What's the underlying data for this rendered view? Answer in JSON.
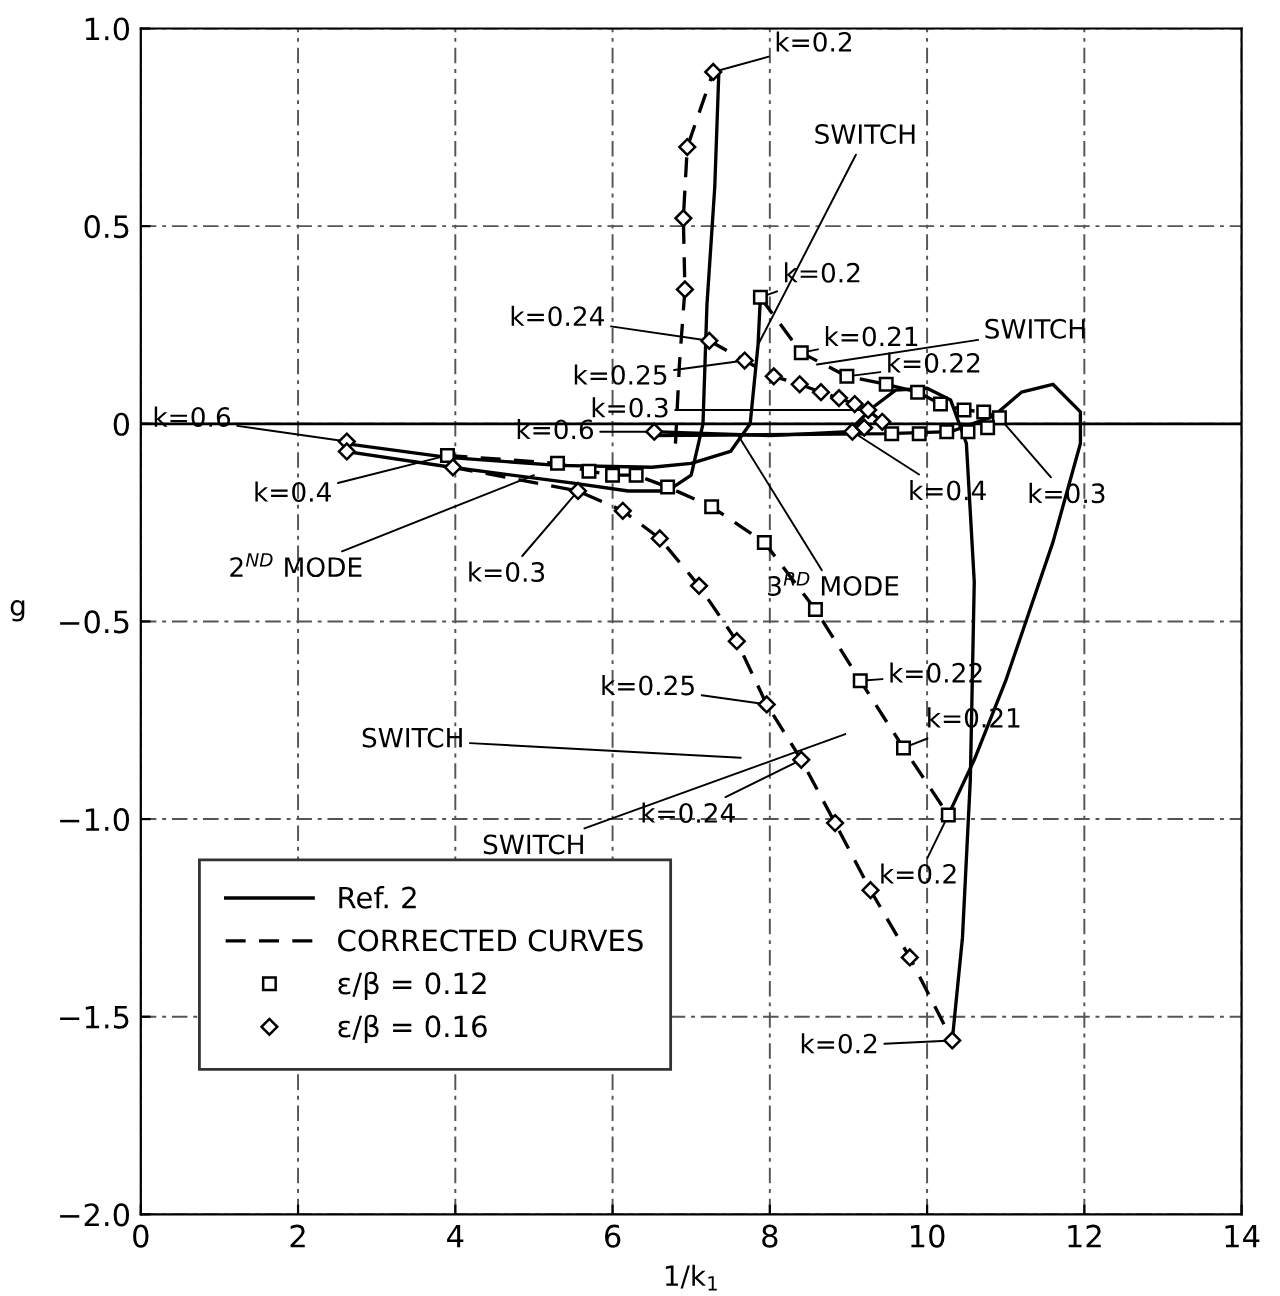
{
  "chart_data": {
    "type": "line",
    "xlabel": "1/k$_{1}$",
    "ylabel": "g",
    "xlim": [
      0,
      14
    ],
    "xticks": [
      0,
      2,
      4,
      6,
      8,
      10,
      12,
      14
    ],
    "ylim": [
      -2.0,
      1.0
    ],
    "yticks": [
      {
        "value": -2.0,
        "label": "−2.0"
      },
      {
        "value": -1.5,
        "label": "−1.5"
      },
      {
        "value": -1.0,
        "label": "−1.0"
      },
      {
        "value": -0.5,
        "label": "−0.5"
      },
      0,
      {
        "value": 0.5,
        "label": "0.5"
      },
      {
        "value": 1.0,
        "label": "1.0"
      }
    ],
    "grid": true,
    "legend": "bottom left",
    "ref_lines": [
      {
        "axis": "y",
        "value": 0,
        "color": "#000000",
        "line_style": "solid"
      }
    ],
    "series": [
      {
        "name": "Ref. 2",
        "type": "line",
        "line_style": "solid",
        "marker": "none",
        "color": "#000000",
        "x": [
          2.6,
          3.9,
          5.3,
          6.5,
          7.0,
          7.5,
          7.75,
          7.85,
          7.88
        ],
        "values": [
          -0.05,
          -0.085,
          -0.105,
          -0.11,
          -0.1,
          -0.07,
          0.0,
          0.2,
          0.32
        ]
      },
      {
        "type": "line",
        "line_style": "solid",
        "marker": "none",
        "color": "#000000",
        "x": [
          2.6,
          3.95,
          5.5,
          6.2,
          6.7,
          7.0,
          7.15,
          7.2,
          7.3,
          7.35
        ],
        "values": [
          -0.07,
          -0.11,
          -0.15,
          -0.17,
          -0.17,
          -0.13,
          0.0,
          0.3,
          0.6,
          0.88
        ]
      },
      {
        "type": "line",
        "line_style": "solid",
        "marker": "none",
        "color": "#000000",
        "x": [
          6.5,
          8.0,
          9.0,
          9.3,
          9.6,
          10.0,
          10.3,
          10.5,
          10.6,
          10.55,
          10.45,
          10.32
        ],
        "values": [
          -0.02,
          -0.03,
          -0.02,
          0.04,
          0.085,
          0.09,
          0.06,
          -0.05,
          -0.4,
          -0.9,
          -1.3,
          -1.56
        ]
      },
      {
        "type": "line",
        "line_style": "solid",
        "marker": "none",
        "color": "#000000",
        "x": [
          6.5,
          9.5,
          10.3,
          10.85,
          11.2,
          11.6,
          11.95,
          11.95,
          11.6,
          11.0,
          10.6,
          10.27
        ],
        "values": [
          -0.03,
          -0.025,
          -0.02,
          0.02,
          0.08,
          0.1,
          0.03,
          -0.05,
          -0.3,
          -0.65,
          -0.85,
          -0.99
        ]
      },
      {
        "name": "CORRECTED CURVES",
        "type": "line",
        "line_style": "dashed",
        "marker": "none",
        "color": "#000000",
        "x": [
          3.9,
          5.3,
          5.7,
          6.0,
          6.3,
          6.7,
          7.26,
          7.93,
          8.58,
          9.15,
          9.7,
          10.27
        ],
        "values": [
          -0.08,
          -0.1,
          -0.12,
          -0.13,
          -0.13,
          -0.16,
          -0.21,
          -0.3,
          -0.47,
          -0.65,
          -0.82,
          -0.99
        ]
      },
      {
        "type": "line",
        "line_style": "dashed",
        "marker": "none",
        "color": "#000000",
        "x": [
          3.97,
          5.56,
          6.13,
          6.6,
          7.1,
          7.58,
          7.96,
          8.4,
          8.83,
          9.28,
          9.78,
          10.32
        ],
        "values": [
          -0.11,
          -0.17,
          -0.22,
          -0.29,
          -0.41,
          -0.55,
          -0.71,
          -0.85,
          -1.01,
          -1.18,
          -1.35,
          -1.56
        ]
      },
      {
        "type": "line",
        "line_style": "dashed",
        "marker": "none",
        "color": "#000000",
        "x": [
          6.8,
          6.85,
          6.92,
          6.9,
          6.95,
          7.28
        ],
        "values": [
          -0.05,
          0.15,
          0.34,
          0.52,
          0.7,
          0.89
        ]
      },
      {
        "type": "line",
        "line_style": "dashed",
        "marker": "none",
        "color": "#000000",
        "x": [
          7.88,
          8.4,
          8.98,
          9.48,
          9.88,
          10.17,
          10.47,
          10.72,
          10.92
        ],
        "values": [
          0.32,
          0.18,
          0.12,
          0.1,
          0.08,
          0.05,
          0.035,
          0.03,
          0.015
        ]
      },
      {
        "type": "line",
        "line_style": "dashed",
        "marker": "none",
        "color": "#000000",
        "x": [
          7.23,
          7.68,
          8.05,
          8.38,
          8.65,
          8.88,
          9.08,
          9.25,
          9.43
        ],
        "values": [
          0.21,
          0.16,
          0.12,
          0.1,
          0.08,
          0.065,
          0.05,
          0.035,
          0.005
        ]
      },
      {
        "name": "ε/β = 0.12",
        "type": "scatter",
        "marker": "square",
        "color": "#000000",
        "x": [
          3.9,
          5.3,
          5.7,
          6.0,
          6.3,
          6.7,
          7.26,
          7.93,
          8.58,
          9.15,
          9.7,
          10.27,
          7.88,
          8.4,
          8.98,
          9.48,
          9.88,
          10.17,
          10.47,
          10.72,
          10.92,
          9.55,
          9.9,
          10.25,
          10.52,
          10.77
        ],
        "values": [
          -0.08,
          -0.1,
          -0.12,
          -0.13,
          -0.13,
          -0.16,
          -0.21,
          -0.3,
          -0.47,
          -0.65,
          -0.82,
          -0.99,
          0.32,
          0.18,
          0.12,
          0.1,
          0.08,
          0.05,
          0.035,
          0.03,
          0.015,
          -0.025,
          -0.025,
          -0.02,
          -0.02,
          -0.01
        ]
      },
      {
        "name": "ε/β = 0.16",
        "type": "scatter",
        "marker": "diamond",
        "color": "#000000",
        "x": [
          2.62,
          2.62,
          3.97,
          5.56,
          6.13,
          6.6,
          7.1,
          7.58,
          7.96,
          8.4,
          8.83,
          9.28,
          9.78,
          10.32,
          6.92,
          6.9,
          6.95,
          7.28,
          7.23,
          7.68,
          8.05,
          8.38,
          8.65,
          8.88,
          9.08,
          9.25,
          9.43,
          6.53,
          9.05,
          9.2
        ],
        "values": [
          -0.045,
          -0.07,
          -0.11,
          -0.17,
          -0.22,
          -0.29,
          -0.41,
          -0.55,
          -0.71,
          -0.85,
          -1.01,
          -1.18,
          -1.35,
          -1.56,
          0.34,
          0.52,
          0.7,
          0.89,
          0.21,
          0.16,
          0.12,
          0.1,
          0.08,
          0.065,
          0.05,
          0.035,
          0.005,
          -0.02,
          -0.02,
          -0.01
        ]
      }
    ],
    "annotations": [
      {
        "text": "k=0.2",
        "x": 7.28,
        "y": 0.89
      },
      {
        "text": "SWITCH",
        "x": 7.85,
        "y": 0.2
      },
      {
        "text": "k=0.2",
        "x": 7.88,
        "y": 0.32
      },
      {
        "text": "k=0.21",
        "x": 8.4,
        "y": 0.18
      },
      {
        "text": "SWITCH",
        "x": 8.6,
        "y": 0.15
      },
      {
        "text": "k=0.24",
        "x": 7.23,
        "y": 0.21
      },
      {
        "text": "k=0.25",
        "x": 7.68,
        "y": 0.16
      },
      {
        "text": "k=0.22",
        "x": 8.98,
        "y": 0.12
      },
      {
        "text": "k=0.3",
        "x": 9.25,
        "y": 0.035
      },
      {
        "text": "k=0.6",
        "x": 6.53,
        "y": -0.02
      },
      {
        "text": "k=0.4",
        "x": 9.05,
        "y": -0.02
      },
      {
        "text": "k=0.3",
        "x": 10.92,
        "y": 0.015
      },
      {
        "text": "3$^{RD}$ MODE",
        "x": 7.6,
        "y": -0.03
      },
      {
        "text": "k=0.6",
        "x": 2.62,
        "y": -0.045
      },
      {
        "text": "k=0.4",
        "x": 3.9,
        "y": -0.08
      },
      {
        "text": "2$^{ND}$ MODE",
        "x": 5.0,
        "y": -0.13
      },
      {
        "text": "k=0.3",
        "x": 5.56,
        "y": -0.17
      },
      {
        "text": "k=0.22",
        "x": 9.15,
        "y": -0.65
      },
      {
        "text": "k=0.25",
        "x": 7.96,
        "y": -0.71
      },
      {
        "text": "k=0.21",
        "x": 9.7,
        "y": -0.82
      },
      "SWITCH",
      {
        "text": "k=0.24",
        "x": 8.4,
        "y": -0.85
      },
      {
        "text": "k=0.2",
        "x": 10.27,
        "y": -0.99
      },
      "SWITCH",
      {
        "text": "k=0.2",
        "x": 10.32,
        "y": -1.56
      }
    ]
  }
}
